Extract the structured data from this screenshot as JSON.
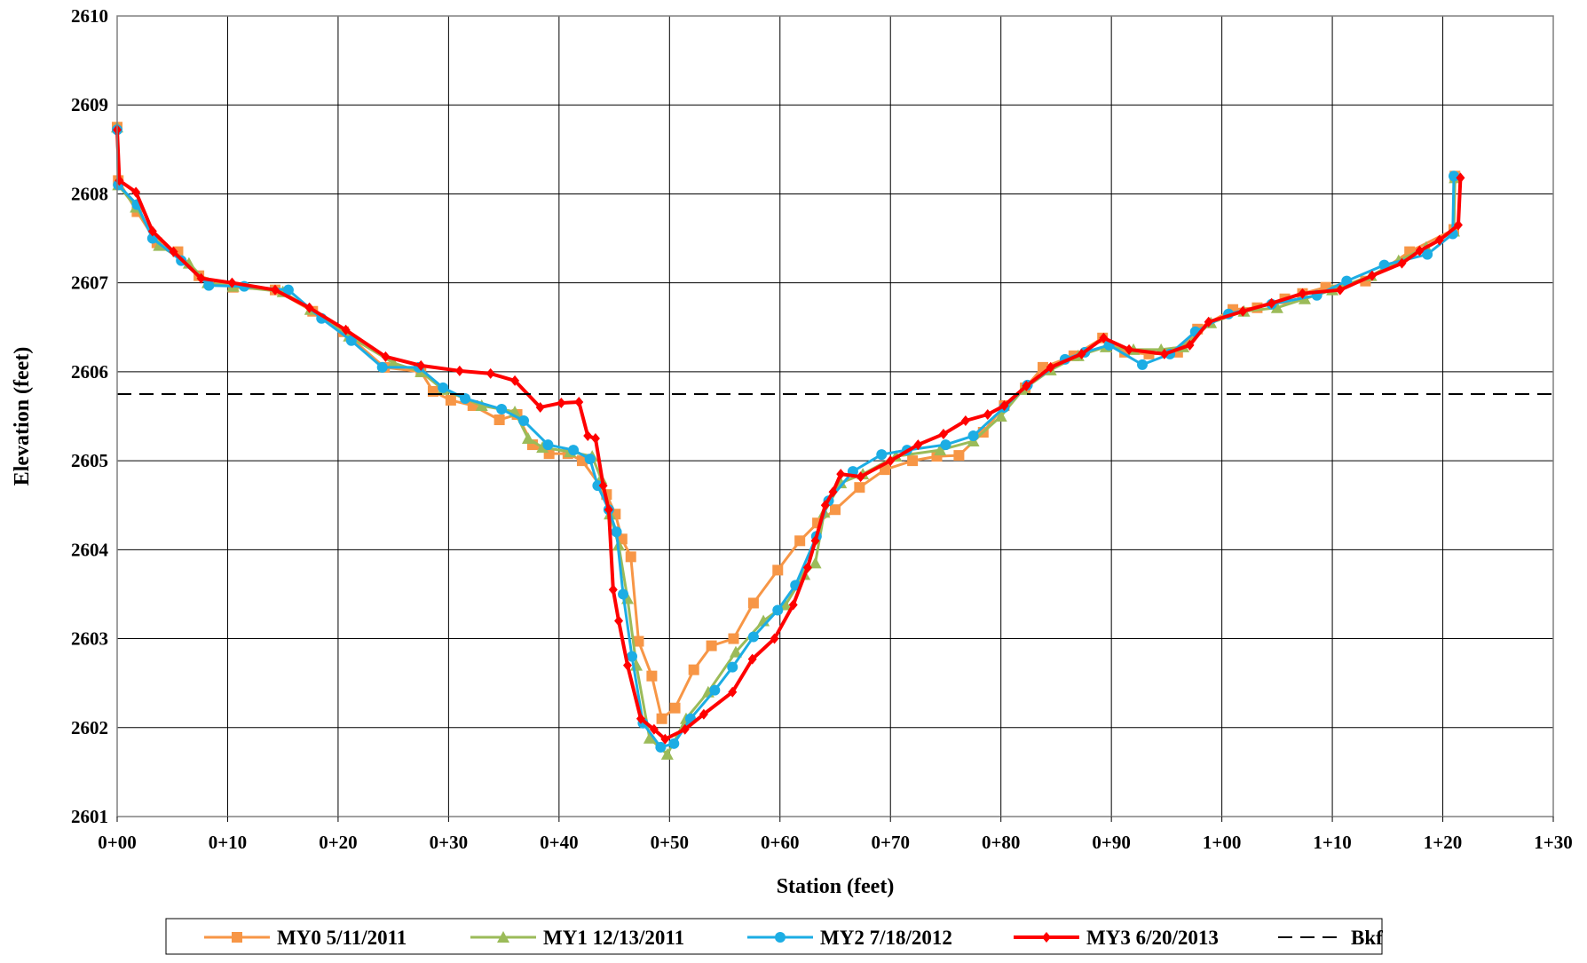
{
  "chart_data": {
    "type": "line",
    "xlabel": "Station (feet)",
    "ylabel": "Elevation (feet)",
    "xlim": [
      0,
      130
    ],
    "ylim": [
      2601,
      2610
    ],
    "x_ticks": [
      0,
      10,
      20,
      30,
      40,
      50,
      60,
      70,
      80,
      90,
      100,
      110,
      120,
      130
    ],
    "x_tick_labels": [
      "0+00",
      "0+10",
      "0+20",
      "0+30",
      "0+40",
      "0+50",
      "0+60",
      "0+70",
      "0+80",
      "0+90",
      "1+00",
      "1+10",
      "1+20",
      "1+30"
    ],
    "y_ticks": [
      2601,
      2602,
      2603,
      2604,
      2605,
      2606,
      2607,
      2608,
      2609,
      2610
    ],
    "y_tick_labels": [
      "2601",
      "2602",
      "2603",
      "2604",
      "2605",
      "2606",
      "2607",
      "2608",
      "2609",
      "2610"
    ],
    "grid": true,
    "legend_position": "bottom",
    "series": [
      {
        "name": "MY0 5/11/2011",
        "color": "#F79646",
        "marker": "square",
        "points": [
          [
            0,
            2608.75
          ],
          [
            0.1,
            2608.15
          ],
          [
            1.8,
            2607.8
          ],
          [
            3.6,
            2607.45
          ],
          [
            5.5,
            2607.35
          ],
          [
            7.4,
            2607.08
          ],
          [
            10.5,
            2606.95
          ],
          [
            14.3,
            2606.92
          ],
          [
            17.7,
            2606.68
          ],
          [
            20.5,
            2606.45
          ],
          [
            24.2,
            2606.05
          ],
          [
            27.5,
            2606.0
          ],
          [
            28.6,
            2605.78
          ],
          [
            30.2,
            2605.68
          ],
          [
            32.2,
            2605.62
          ],
          [
            34.6,
            2605.46
          ],
          [
            36.2,
            2605.52
          ],
          [
            37.6,
            2605.18
          ],
          [
            39.1,
            2605.08
          ],
          [
            40.8,
            2605.08
          ],
          [
            42.1,
            2605.0
          ],
          [
            44.3,
            2604.62
          ],
          [
            45.1,
            2604.4
          ],
          [
            45.7,
            2604.12
          ],
          [
            46.5,
            2603.92
          ],
          [
            47.2,
            2602.97
          ],
          [
            48.4,
            2602.58
          ],
          [
            49.3,
            2602.1
          ],
          [
            50.5,
            2602.22
          ],
          [
            52.2,
            2602.65
          ],
          [
            53.8,
            2602.92
          ],
          [
            55.8,
            2603.0
          ],
          [
            57.6,
            2603.4
          ],
          [
            59.8,
            2603.77
          ],
          [
            61.8,
            2604.1
          ],
          [
            63.4,
            2604.3
          ],
          [
            65.0,
            2604.45
          ],
          [
            67.2,
            2604.7
          ],
          [
            69.5,
            2604.9
          ],
          [
            72.0,
            2605.0
          ],
          [
            74.2,
            2605.05
          ],
          [
            76.2,
            2605.06
          ],
          [
            78.4,
            2605.32
          ],
          [
            80.3,
            2605.62
          ],
          [
            82.2,
            2605.82
          ],
          [
            83.8,
            2606.05
          ],
          [
            86.6,
            2606.18
          ],
          [
            89.2,
            2606.38
          ],
          [
            91.2,
            2606.22
          ],
          [
            93.4,
            2606.2
          ],
          [
            96.0,
            2606.22
          ],
          [
            97.8,
            2606.48
          ],
          [
            101.0,
            2606.7
          ],
          [
            103.2,
            2606.72
          ],
          [
            105.7,
            2606.82
          ],
          [
            107.3,
            2606.88
          ],
          [
            109.4,
            2606.95
          ],
          [
            113.0,
            2607.02
          ],
          [
            117.0,
            2607.35
          ],
          [
            121.0,
            2607.6
          ],
          [
            121.1,
            2608.2
          ]
        ]
      },
      {
        "name": "MY1 12/13/2011",
        "color": "#9BBB59",
        "marker": "triangle",
        "points": [
          [
            0,
            2608.75
          ],
          [
            0.1,
            2608.1
          ],
          [
            1.7,
            2607.85
          ],
          [
            3.8,
            2607.42
          ],
          [
            6.5,
            2607.22
          ],
          [
            8.2,
            2607.0
          ],
          [
            10.5,
            2606.96
          ],
          [
            15.0,
            2606.9
          ],
          [
            17.5,
            2606.7
          ],
          [
            21.0,
            2606.4
          ],
          [
            25.0,
            2606.1
          ],
          [
            27.5,
            2606.0
          ],
          [
            29.5,
            2605.8
          ],
          [
            33.0,
            2605.62
          ],
          [
            36.0,
            2605.55
          ],
          [
            37.2,
            2605.25
          ],
          [
            38.5,
            2605.15
          ],
          [
            41.0,
            2605.1
          ],
          [
            43.0,
            2605.05
          ],
          [
            43.8,
            2604.8
          ],
          [
            44.6,
            2604.4
          ],
          [
            45.4,
            2604.05
          ],
          [
            46.2,
            2603.45
          ],
          [
            47.0,
            2602.7
          ],
          [
            48.2,
            2601.88
          ],
          [
            49.8,
            2601.7
          ],
          [
            51.5,
            2602.1
          ],
          [
            53.5,
            2602.4
          ],
          [
            56.0,
            2602.85
          ],
          [
            58.5,
            2603.2
          ],
          [
            60.5,
            2603.38
          ],
          [
            62.2,
            2603.72
          ],
          [
            63.2,
            2603.85
          ],
          [
            64.0,
            2604.42
          ],
          [
            65.5,
            2604.75
          ],
          [
            67.5,
            2604.85
          ],
          [
            70.5,
            2605.05
          ],
          [
            74.5,
            2605.12
          ],
          [
            77.5,
            2605.22
          ],
          [
            80.0,
            2605.5
          ],
          [
            82.0,
            2605.8
          ],
          [
            84.5,
            2606.02
          ],
          [
            87.0,
            2606.18
          ],
          [
            89.5,
            2606.28
          ],
          [
            92.0,
            2606.25
          ],
          [
            94.5,
            2606.25
          ],
          [
            96.5,
            2606.28
          ],
          [
            99.0,
            2606.55
          ],
          [
            102.0,
            2606.68
          ],
          [
            105.0,
            2606.72
          ],
          [
            107.5,
            2606.82
          ],
          [
            110.0,
            2606.92
          ],
          [
            113.5,
            2607.08
          ],
          [
            116.0,
            2607.25
          ],
          [
            118.5,
            2607.4
          ],
          [
            121.0,
            2607.58
          ],
          [
            121.1,
            2608.18
          ]
        ]
      },
      {
        "name": "MY2 7/18/2012",
        "color": "#1CADE4",
        "marker": "circle",
        "points": [
          [
            0,
            2608.72
          ],
          [
            0.1,
            2608.1
          ],
          [
            1.8,
            2607.88
          ],
          [
            3.2,
            2607.5
          ],
          [
            5.8,
            2607.25
          ],
          [
            8.3,
            2606.97
          ],
          [
            11.5,
            2606.96
          ],
          [
            15.5,
            2606.92
          ],
          [
            18.5,
            2606.6
          ],
          [
            21.2,
            2606.35
          ],
          [
            24.0,
            2606.05
          ],
          [
            27.3,
            2606.05
          ],
          [
            29.5,
            2605.82
          ],
          [
            31.5,
            2605.7
          ],
          [
            34.8,
            2605.58
          ],
          [
            36.8,
            2605.45
          ],
          [
            39.0,
            2605.18
          ],
          [
            41.3,
            2605.12
          ],
          [
            42.8,
            2605.02
          ],
          [
            43.5,
            2604.72
          ],
          [
            44.5,
            2604.45
          ],
          [
            45.2,
            2604.2
          ],
          [
            45.8,
            2603.5
          ],
          [
            46.6,
            2602.8
          ],
          [
            47.6,
            2602.05
          ],
          [
            49.2,
            2601.78
          ],
          [
            50.4,
            2601.82
          ],
          [
            51.9,
            2602.1
          ],
          [
            54.1,
            2602.42
          ],
          [
            55.7,
            2602.68
          ],
          [
            57.6,
            2603.02
          ],
          [
            59.8,
            2603.32
          ],
          [
            61.4,
            2603.6
          ],
          [
            63.3,
            2604.15
          ],
          [
            64.4,
            2604.55
          ],
          [
            66.6,
            2604.88
          ],
          [
            69.2,
            2605.07
          ],
          [
            71.5,
            2605.12
          ],
          [
            75.0,
            2605.18
          ],
          [
            77.5,
            2605.28
          ],
          [
            80.3,
            2605.6
          ],
          [
            82.4,
            2605.85
          ],
          [
            85.8,
            2606.14
          ],
          [
            87.6,
            2606.22
          ],
          [
            89.8,
            2606.3
          ],
          [
            92.8,
            2606.08
          ],
          [
            95.3,
            2606.2
          ],
          [
            97.6,
            2606.45
          ],
          [
            100.6,
            2606.65
          ],
          [
            104.5,
            2606.76
          ],
          [
            108.6,
            2606.86
          ],
          [
            111.3,
            2607.02
          ],
          [
            114.7,
            2607.2
          ],
          [
            118.6,
            2607.32
          ],
          [
            120.9,
            2607.55
          ],
          [
            121.0,
            2608.2
          ]
        ]
      },
      {
        "name": "MY3 6/20/2013",
        "color": "#FF0000",
        "marker": "diamond",
        "points": [
          [
            0,
            2608.72
          ],
          [
            0.2,
            2608.15
          ],
          [
            1.7,
            2608.02
          ],
          [
            3.2,
            2607.58
          ],
          [
            5.1,
            2607.35
          ],
          [
            7.6,
            2607.05
          ],
          [
            10.4,
            2607.0
          ],
          [
            14.3,
            2606.92
          ],
          [
            17.4,
            2606.72
          ],
          [
            20.7,
            2606.47
          ],
          [
            24.3,
            2606.17
          ],
          [
            27.5,
            2606.07
          ],
          [
            31.0,
            2606.01
          ],
          [
            33.8,
            2605.98
          ],
          [
            36.0,
            2605.9
          ],
          [
            38.3,
            2605.6
          ],
          [
            40.2,
            2605.65
          ],
          [
            41.8,
            2605.66
          ],
          [
            42.6,
            2605.28
          ],
          [
            43.3,
            2605.25
          ],
          [
            44.0,
            2604.72
          ],
          [
            44.5,
            2604.45
          ],
          [
            44.9,
            2603.55
          ],
          [
            45.4,
            2603.2
          ],
          [
            46.2,
            2602.7
          ],
          [
            47.4,
            2602.1
          ],
          [
            48.6,
            2601.98
          ],
          [
            49.6,
            2601.87
          ],
          [
            51.4,
            2601.98
          ],
          [
            53.1,
            2602.15
          ],
          [
            55.7,
            2602.4
          ],
          [
            57.5,
            2602.77
          ],
          [
            59.5,
            2603.0
          ],
          [
            61.2,
            2603.38
          ],
          [
            62.5,
            2603.8
          ],
          [
            63.2,
            2604.1
          ],
          [
            64.1,
            2604.5
          ],
          [
            64.8,
            2604.65
          ],
          [
            65.5,
            2604.85
          ],
          [
            67.3,
            2604.82
          ],
          [
            70.0,
            2605.0
          ],
          [
            72.5,
            2605.18
          ],
          [
            74.8,
            2605.3
          ],
          [
            76.8,
            2605.45
          ],
          [
            78.8,
            2605.52
          ],
          [
            80.3,
            2605.62
          ],
          [
            82.3,
            2605.84
          ],
          [
            84.5,
            2606.05
          ],
          [
            87.3,
            2606.2
          ],
          [
            89.3,
            2606.38
          ],
          [
            91.6,
            2606.25
          ],
          [
            94.8,
            2606.2
          ],
          [
            97.1,
            2606.3
          ],
          [
            98.8,
            2606.56
          ],
          [
            101.9,
            2606.68
          ],
          [
            104.5,
            2606.77
          ],
          [
            107.3,
            2606.88
          ],
          [
            110.7,
            2606.92
          ],
          [
            113.6,
            2607.08
          ],
          [
            116.3,
            2607.22
          ],
          [
            117.9,
            2607.36
          ],
          [
            119.7,
            2607.48
          ],
          [
            121.4,
            2607.65
          ],
          [
            121.6,
            2608.18
          ]
        ]
      },
      {
        "name": "Bkf",
        "color": "#000000",
        "marker": "none",
        "dashed": true,
        "points": [
          [
            0,
            2605.75
          ],
          [
            130,
            2605.75
          ]
        ]
      }
    ]
  }
}
